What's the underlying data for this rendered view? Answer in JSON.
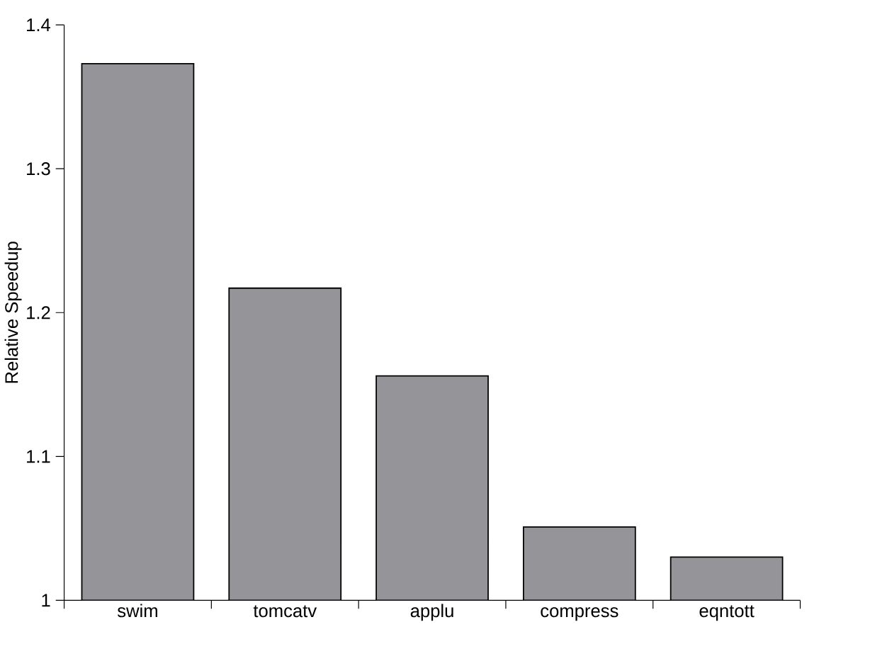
{
  "chart_data": {
    "type": "bar",
    "ylabel": "Relative Speedup",
    "categories": [
      "swim",
      "tomcatv",
      "applu",
      "compress",
      "eqntott"
    ],
    "values": [
      1.373,
      1.217,
      1.156,
      1.051,
      1.03
    ],
    "color": "#959599",
    "ylim": [
      1,
      1.4
    ],
    "yticks": [
      1,
      1.1,
      1.2,
      1.3,
      1.4
    ]
  }
}
